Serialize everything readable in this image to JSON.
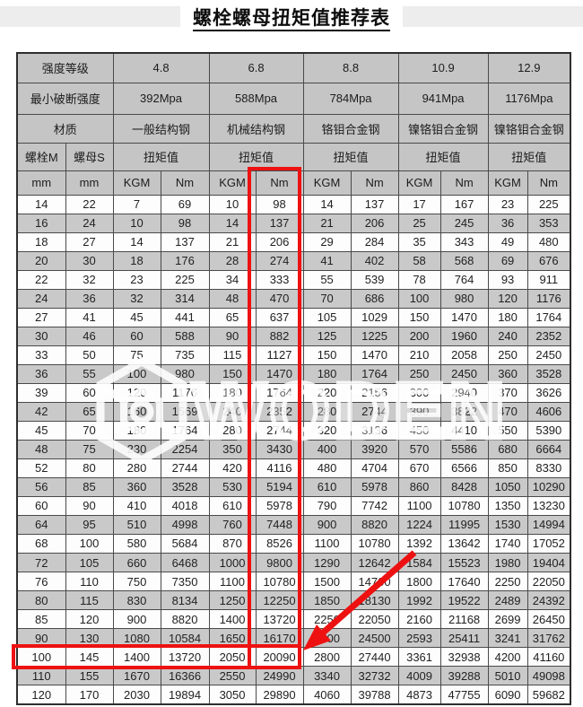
{
  "title": "螺栓螺母扭矩值推荐表",
  "table": {
    "header": {
      "strength_grade_label": "强度等级",
      "grades": [
        "4.8",
        "6.8",
        "8.8",
        "10.9",
        "12.9"
      ],
      "min_breaking_label": "最小破断强度",
      "min_breaking_values": [
        "392Mpa",
        "588Mpa",
        "784Mpa",
        "941Mpa",
        "1176Mpa"
      ],
      "material_label": "材质",
      "materials": [
        "一般结构钢",
        "机械结构钢",
        "铬钼合金钢",
        "镍铬钼合金钢",
        "镍铬钼合金钢"
      ],
      "bolt_label": "螺栓M",
      "nut_label": "螺母S",
      "torque_label": "扭矩值",
      "unit_mm": "mm",
      "unit_kgm": "KGM",
      "unit_nm": "Nm"
    },
    "rows": [
      [
        "14",
        "22",
        "7",
        "69",
        "10",
        "98",
        "14",
        "137",
        "17",
        "167",
        "23",
        "225"
      ],
      [
        "16",
        "24",
        "10",
        "98",
        "14",
        "137",
        "21",
        "206",
        "25",
        "245",
        "36",
        "353"
      ],
      [
        "18",
        "27",
        "14",
        "137",
        "21",
        "206",
        "29",
        "284",
        "35",
        "343",
        "49",
        "480"
      ],
      [
        "20",
        "30",
        "18",
        "176",
        "28",
        "274",
        "41",
        "402",
        "58",
        "568",
        "69",
        "676"
      ],
      [
        "22",
        "32",
        "23",
        "225",
        "34",
        "333",
        "55",
        "539",
        "78",
        "764",
        "93",
        "911"
      ],
      [
        "24",
        "36",
        "32",
        "314",
        "48",
        "470",
        "70",
        "686",
        "100",
        "980",
        "120",
        "1176"
      ],
      [
        "27",
        "41",
        "45",
        "441",
        "65",
        "637",
        "105",
        "1029",
        "150",
        "1470",
        "180",
        "1764"
      ],
      [
        "30",
        "46",
        "60",
        "588",
        "90",
        "882",
        "125",
        "1225",
        "200",
        "1960",
        "240",
        "2352"
      ],
      [
        "33",
        "50",
        "75",
        "735",
        "115",
        "1127",
        "150",
        "1470",
        "210",
        "2058",
        "250",
        "2450"
      ],
      [
        "36",
        "55",
        "100",
        "980",
        "150",
        "1470",
        "180",
        "1764",
        "250",
        "2450",
        "360",
        "3528"
      ],
      [
        "39",
        "60",
        "120",
        "1176",
        "180",
        "1764",
        "220",
        "2156",
        "300",
        "2940",
        "370",
        "3626"
      ],
      [
        "42",
        "65",
        "160",
        "1569",
        "240",
        "2352",
        "280",
        "2744",
        "390",
        "3822",
        "470",
        "4606"
      ],
      [
        "45",
        "70",
        "180",
        "1764",
        "280",
        "2744",
        "320",
        "3136",
        "450",
        "4410",
        "550",
        "5390"
      ],
      [
        "48",
        "75",
        "230",
        "2254",
        "350",
        "3430",
        "400",
        "3920",
        "570",
        "5586",
        "680",
        "6664"
      ],
      [
        "52",
        "80",
        "280",
        "2744",
        "420",
        "4116",
        "480",
        "4704",
        "670",
        "6566",
        "850",
        "8330"
      ],
      [
        "56",
        "85",
        "360",
        "3528",
        "530",
        "5194",
        "610",
        "5978",
        "860",
        "8428",
        "1050",
        "10290"
      ],
      [
        "60",
        "90",
        "410",
        "4018",
        "610",
        "5978",
        "790",
        "7742",
        "1100",
        "10780",
        "1350",
        "13230"
      ],
      [
        "64",
        "95",
        "510",
        "4998",
        "760",
        "7448",
        "900",
        "8820",
        "1224",
        "11995",
        "1530",
        "14994"
      ],
      [
        "68",
        "100",
        "580",
        "5684",
        "870",
        "8526",
        "1100",
        "10780",
        "1392",
        "13642",
        "1740",
        "17052"
      ],
      [
        "72",
        "105",
        "660",
        "6468",
        "1000",
        "9800",
        "1290",
        "12642",
        "1584",
        "15523",
        "1980",
        "19404"
      ],
      [
        "76",
        "110",
        "750",
        "7350",
        "1100",
        "10780",
        "1500",
        "14700",
        "1800",
        "17640",
        "2250",
        "22050"
      ],
      [
        "80",
        "115",
        "830",
        "8134",
        "1250",
        "12250",
        "1850",
        "18130",
        "1992",
        "19522",
        "2489",
        "24392"
      ],
      [
        "85",
        "120",
        "900",
        "8820",
        "1400",
        "13720",
        "2250",
        "22050",
        "2160",
        "21168",
        "2699",
        "26450"
      ],
      [
        "90",
        "130",
        "1080",
        "10584",
        "1650",
        "16170",
        "2500",
        "24500",
        "2593",
        "25411",
        "3241",
        "31762"
      ],
      [
        "100",
        "145",
        "1400",
        "13720",
        "2050",
        "20090",
        "2800",
        "27440",
        "3361",
        "32938",
        "4200",
        "41160"
      ],
      [
        "110",
        "155",
        "1670",
        "16366",
        "2550",
        "24990",
        "3340",
        "32732",
        "4009",
        "39288",
        "5010",
        "49098"
      ],
      [
        "120",
        "170",
        "2030",
        "19894",
        "3050",
        "29890",
        "4060",
        "39788",
        "4873",
        "47755",
        "6090",
        "59682"
      ]
    ]
  },
  "watermark": {
    "text": "WODEN"
  },
  "annotations": {
    "highlight_color": "#ee1111",
    "highlighted_column": "6.8 Nm",
    "highlighted_row_bolt_m": "100",
    "highlighted_cell_value": "20090"
  },
  "colors": {
    "header_bg": "#c5c5c5",
    "row_alt_bg": "#c9c9c9",
    "grid_line": "#4a4a4a"
  }
}
